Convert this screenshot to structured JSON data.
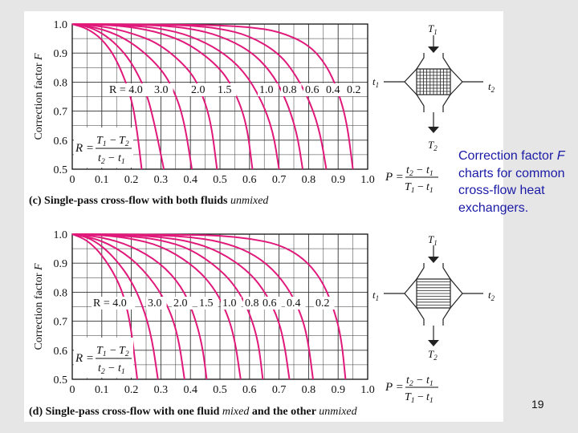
{
  "caption": {
    "before_italic": "Correction factor ",
    "italic": "F",
    "after_italic": " charts for common cross-flow heat exchangers."
  },
  "page_number": "19",
  "colors": {
    "curve": "#e0197a",
    "grid": "#222222",
    "caption_text": "#1a1aa6"
  },
  "icons": {
    "unmixed_exchanger": "cross-flow-exchanger-grid-icon",
    "mixed_exchanger": "cross-flow-exchanger-tubes-icon"
  },
  "chart_data": [
    {
      "type": "line",
      "panel_label": "(c)",
      "caption_prefix": "Single-pass cross-flow with both fluids ",
      "caption_italic": "unmixed",
      "ylabel": "Correction factor F",
      "xlabel_formula": {
        "lhs": "P =",
        "num": "t2 − t1",
        "den": "T1 − t1"
      },
      "r_formula": {
        "lhs": "R =",
        "num": "T1 − T2",
        "den": "t2 − t1"
      },
      "xlim": [
        0,
        1.0
      ],
      "ylim": [
        0.5,
        1.0
      ],
      "x_ticks": [
        "0",
        "0.1",
        "0.2",
        "0.3",
        "0.4",
        "0.5",
        "0.6",
        "0.7",
        "0.8",
        "0.9",
        "1.0"
      ],
      "y_ticks": [
        "1.0",
        "0.9",
        "0.8",
        "0.7",
        "0.6",
        "0.5"
      ],
      "grid": true,
      "curve_labels": [
        "R = 4.0",
        "3.0",
        "2.0",
        "1.5",
        "1.0",
        "0.8",
        "0.6",
        "0.4",
        "0.2"
      ],
      "series": [
        {
          "name": "4.0",
          "x": [
            0,
            0.05,
            0.1,
            0.15,
            0.2,
            0.22,
            0.235
          ],
          "y": [
            1.0,
            0.985,
            0.95,
            0.88,
            0.75,
            0.63,
            0.5
          ]
        },
        {
          "name": "3.0",
          "x": [
            0,
            0.05,
            0.1,
            0.15,
            0.2,
            0.25,
            0.28,
            0.31
          ],
          "y": [
            1.0,
            0.992,
            0.97,
            0.93,
            0.87,
            0.77,
            0.65,
            0.5
          ]
        },
        {
          "name": "2.0",
          "x": [
            0,
            0.1,
            0.2,
            0.3,
            0.35,
            0.38,
            0.405
          ],
          "y": [
            1.0,
            0.985,
            0.94,
            0.85,
            0.76,
            0.66,
            0.5
          ]
        },
        {
          "name": "1.5",
          "x": [
            0,
            0.1,
            0.2,
            0.3,
            0.4,
            0.44,
            0.47,
            0.49
          ],
          "y": [
            1.0,
            0.993,
            0.97,
            0.93,
            0.84,
            0.76,
            0.66,
            0.5
          ]
        },
        {
          "name": "1.0",
          "x": [
            0,
            0.1,
            0.2,
            0.3,
            0.4,
            0.5,
            0.55,
            0.59,
            0.61
          ],
          "y": [
            1.0,
            0.998,
            0.99,
            0.97,
            0.93,
            0.85,
            0.77,
            0.66,
            0.5
          ]
        },
        {
          "name": "0.8",
          "x": [
            0,
            0.2,
            0.3,
            0.4,
            0.5,
            0.58,
            0.64,
            0.68,
            0.7
          ],
          "y": [
            1.0,
            0.995,
            0.985,
            0.96,
            0.91,
            0.84,
            0.74,
            0.63,
            0.5
          ]
        },
        {
          "name": "0.6",
          "x": [
            0,
            0.2,
            0.3,
            0.4,
            0.5,
            0.6,
            0.67,
            0.72,
            0.76,
            0.78
          ],
          "y": [
            1.0,
            0.998,
            0.995,
            0.985,
            0.96,
            0.91,
            0.84,
            0.75,
            0.63,
            0.5
          ]
        },
        {
          "name": "0.4",
          "x": [
            0,
            0.3,
            0.4,
            0.5,
            0.6,
            0.7,
            0.76,
            0.81,
            0.84,
            0.86
          ],
          "y": [
            1.0,
            0.998,
            0.995,
            0.985,
            0.96,
            0.9,
            0.82,
            0.72,
            0.62,
            0.5
          ]
        },
        {
          "name": "0.2",
          "x": [
            0,
            0.4,
            0.5,
            0.6,
            0.7,
            0.8,
            0.86,
            0.9,
            0.93,
            0.95
          ],
          "y": [
            1.0,
            0.998,
            0.995,
            0.99,
            0.975,
            0.93,
            0.86,
            0.77,
            0.66,
            0.5
          ]
        }
      ]
    },
    {
      "type": "line",
      "panel_label": "(d)",
      "caption_prefix": "Single-pass cross-flow with one fluid ",
      "caption_italic": "mixed",
      "caption_mid": " and the other ",
      "caption_italic2": "unmixed",
      "ylabel": "Correction factor F",
      "xlabel_formula": {
        "lhs": "P =",
        "num": "t2 − t1",
        "den": "T1 − t1"
      },
      "r_formula": {
        "lhs": "R =",
        "num": "T1 − T2",
        "den": "t2 − t1"
      },
      "xlim": [
        0,
        1.0
      ],
      "ylim": [
        0.5,
        1.0
      ],
      "x_ticks": [
        "0",
        "0.1",
        "0.2",
        "0.3",
        "0.4",
        "0.5",
        "0.6",
        "0.7",
        "0.8",
        "0.9",
        "1.0"
      ],
      "y_ticks": [
        "1.0",
        "0.9",
        "0.8",
        "0.7",
        "0.6",
        "0.5"
      ],
      "grid": true,
      "curve_labels": [
        "R = 4.0",
        "3.0",
        "2.0",
        "1.5",
        "1.0",
        "0.8",
        "0.6",
        "0.4",
        "0.2"
      ],
      "series": [
        {
          "name": "4.0",
          "x": [
            0,
            0.05,
            0.1,
            0.15,
            0.18,
            0.2,
            0.22
          ],
          "y": [
            1.0,
            0.98,
            0.93,
            0.85,
            0.77,
            0.67,
            0.5
          ]
        },
        {
          "name": "3.0",
          "x": [
            0,
            0.05,
            0.1,
            0.15,
            0.2,
            0.24,
            0.27,
            0.29
          ],
          "y": [
            1.0,
            0.99,
            0.96,
            0.91,
            0.84,
            0.75,
            0.64,
            0.5
          ]
        },
        {
          "name": "2.0",
          "x": [
            0,
            0.1,
            0.2,
            0.28,
            0.33,
            0.36,
            0.38
          ],
          "y": [
            1.0,
            0.98,
            0.92,
            0.83,
            0.74,
            0.64,
            0.5
          ]
        },
        {
          "name": "1.5",
          "x": [
            0,
            0.1,
            0.2,
            0.3,
            0.37,
            0.41,
            0.44,
            0.455
          ],
          "y": [
            1.0,
            0.99,
            0.96,
            0.9,
            0.82,
            0.73,
            0.62,
            0.5
          ]
        },
        {
          "name": "1.0",
          "x": [
            0,
            0.1,
            0.2,
            0.3,
            0.4,
            0.47,
            0.52,
            0.55,
            0.57
          ],
          "y": [
            1.0,
            0.997,
            0.985,
            0.96,
            0.9,
            0.83,
            0.74,
            0.64,
            0.5
          ]
        },
        {
          "name": "0.8",
          "x": [
            0,
            0.2,
            0.3,
            0.4,
            0.5,
            0.56,
            0.6,
            0.63,
            0.645
          ],
          "y": [
            1.0,
            0.993,
            0.98,
            0.95,
            0.88,
            0.81,
            0.73,
            0.63,
            0.5
          ]
        },
        {
          "name": "0.6",
          "x": [
            0,
            0.2,
            0.3,
            0.4,
            0.5,
            0.6,
            0.66,
            0.7,
            0.72,
            0.735
          ],
          "y": [
            1.0,
            0.997,
            0.99,
            0.975,
            0.94,
            0.87,
            0.79,
            0.7,
            0.61,
            0.5
          ]
        },
        {
          "name": "0.4",
          "x": [
            0,
            0.3,
            0.4,
            0.5,
            0.6,
            0.68,
            0.74,
            0.78,
            0.8,
            0.815
          ],
          "y": [
            1.0,
            0.996,
            0.99,
            0.975,
            0.94,
            0.88,
            0.8,
            0.71,
            0.62,
            0.5
          ]
        },
        {
          "name": "0.2",
          "x": [
            0,
            0.4,
            0.5,
            0.6,
            0.7,
            0.78,
            0.84,
            0.88,
            0.91,
            0.925
          ],
          "y": [
            1.0,
            0.998,
            0.995,
            0.985,
            0.965,
            0.92,
            0.85,
            0.76,
            0.65,
            0.5
          ]
        }
      ]
    }
  ]
}
